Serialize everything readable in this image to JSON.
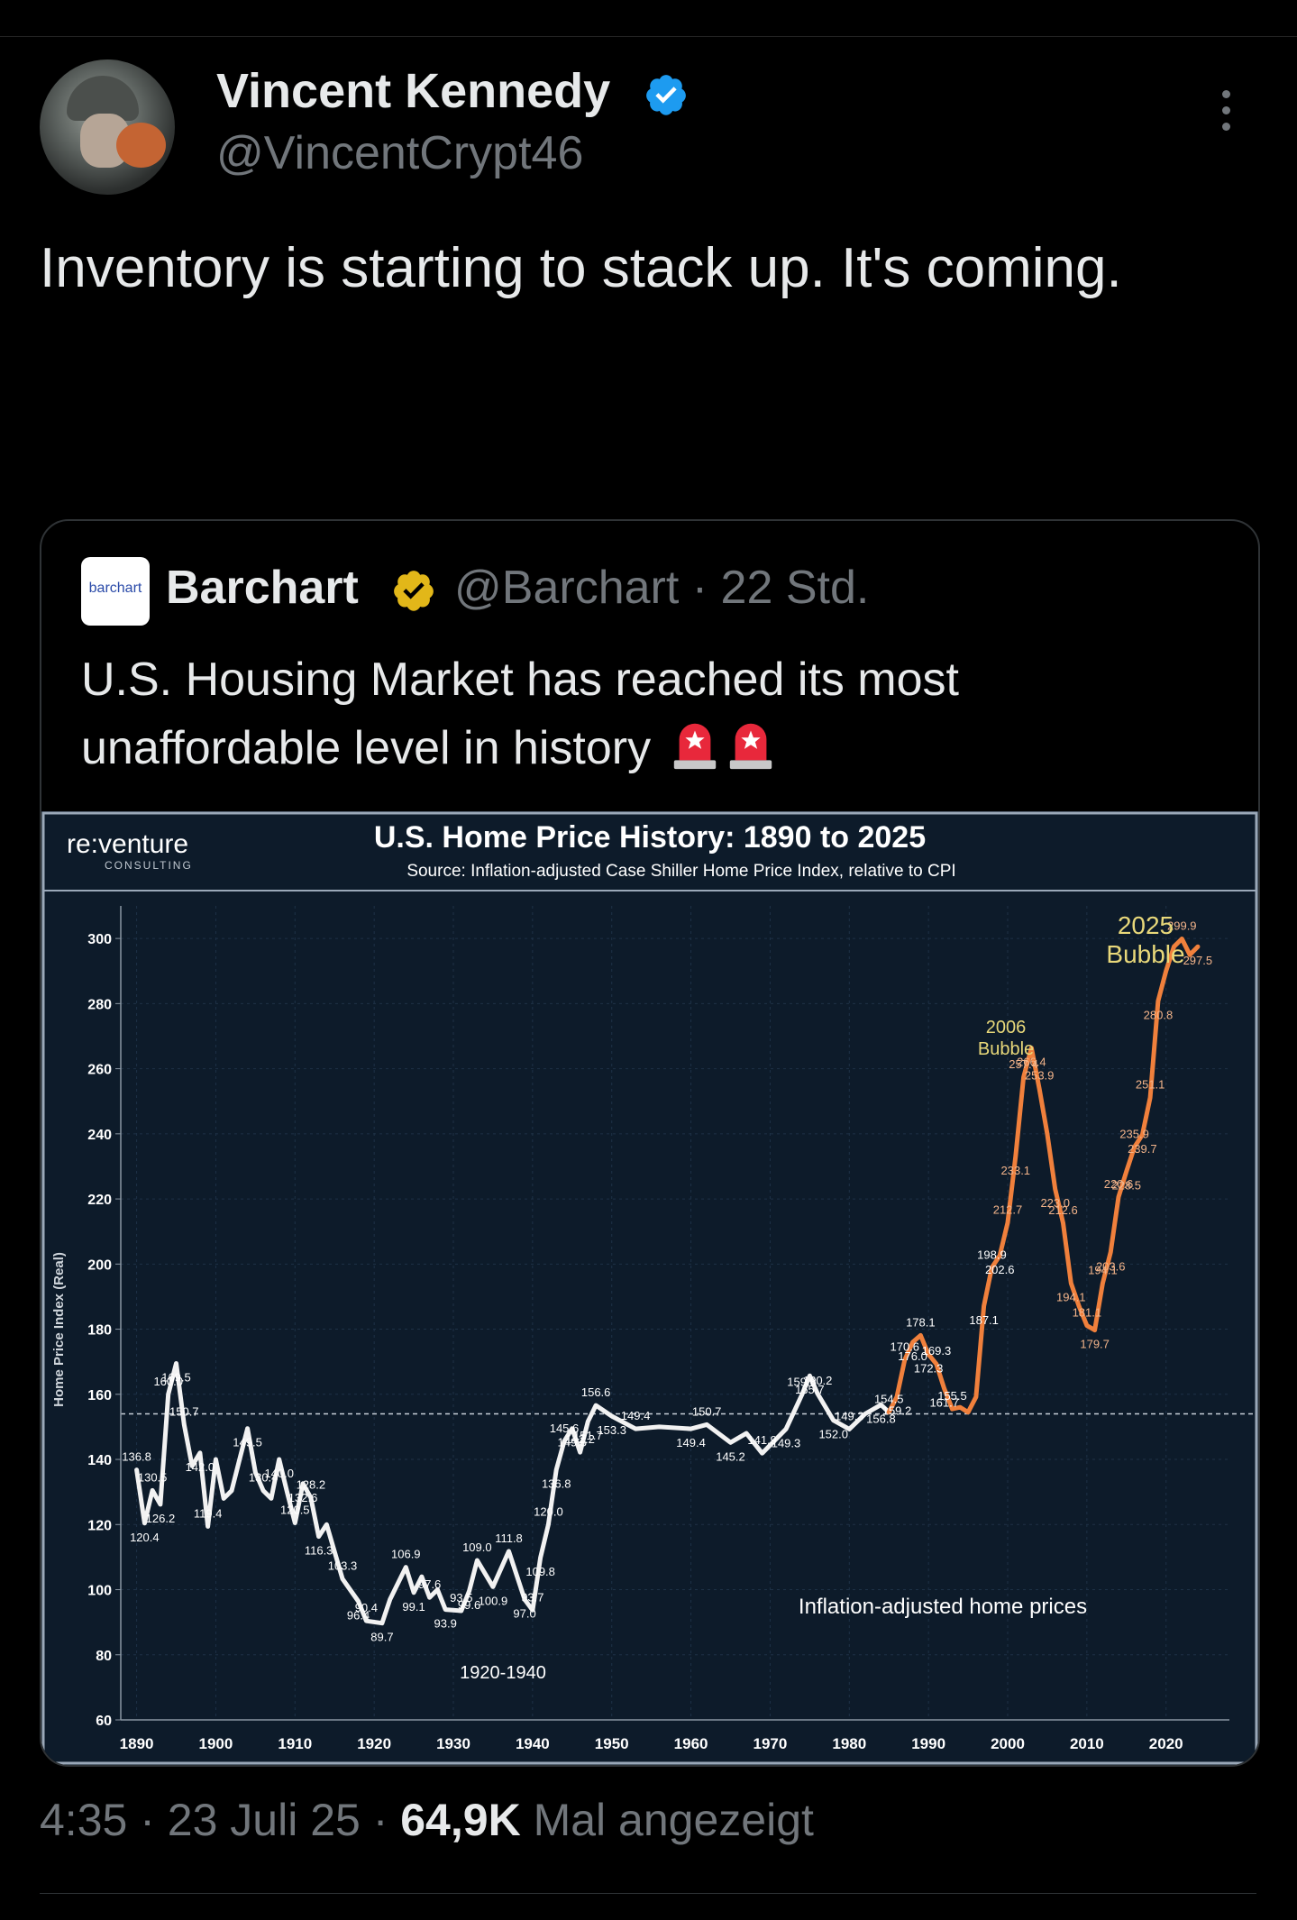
{
  "tweet": {
    "author": {
      "name": "Vincent Kennedy",
      "handle": "@VincentCrypt46",
      "verified": true,
      "avatar_icon": "avatar-photo"
    },
    "text": "Inventory is starting to stack up. It's coming.",
    "meta": {
      "time": "4:35",
      "date": "23 Juli 25",
      "views_count": "64,9K",
      "views_label": "Mal angezeigt"
    }
  },
  "quote": {
    "logo_text": "barchart",
    "name": "Barchart",
    "handle": "@Barchart",
    "time": "22 Std.",
    "text": "U.S. Housing Market has reached its most unaffordable level in history",
    "emoji_icons": [
      "rotating-light-icon",
      "rotating-light-icon"
    ]
  },
  "colors": {
    "background": "#000000",
    "text": "#e7e9ea",
    "muted": "#71767b",
    "verified_blue": "#1d9bf0",
    "verified_gold": "#e2b719",
    "chart_bg": "#0d1b2a",
    "line_white": "#f2f2f2",
    "line_orange": "#f0803c"
  },
  "chart_data": {
    "type": "line",
    "brand": "re:venture",
    "brand_sub": "CONSULTING",
    "title": "U.S. Home Price History: 1890 to 2025",
    "subtitle": "Source: Inflation-adjusted Case Shiller Home Price Index, relative to CPI",
    "ylabel": "Home Price Index (Real)",
    "xlabel": "",
    "ylim": [
      60,
      310
    ],
    "xlim": [
      1888,
      2028
    ],
    "yticks": [
      "60",
      "80",
      "100",
      "120",
      "140",
      "160",
      "180",
      "200",
      "220",
      "240",
      "260",
      "280",
      "300"
    ],
    "xticks": [
      "1890",
      "1900",
      "1910",
      "1920",
      "1930",
      "1940",
      "1950",
      "1960",
      "1970",
      "1980",
      "1990",
      "2000",
      "2010",
      "2020"
    ],
    "reference_line": 154,
    "annotations": [
      "1920-1940",
      "Inflation-adjusted home prices",
      "2006",
      "Bubble",
      "2025",
      "Bubble"
    ],
    "series": [
      {
        "color": "#f2f2f2",
        "points": [
          [
            1890,
            136.8
          ],
          [
            1891,
            120.4
          ],
          [
            1892,
            130.5
          ],
          [
            1893,
            126.2
          ],
          [
            1894,
            160.0
          ],
          [
            1895,
            169.5
          ],
          [
            1896,
            150.7
          ],
          [
            1897,
            138.0
          ],
          [
            1898,
            142.0
          ],
          [
            1899,
            119.4
          ],
          [
            1900,
            140.0
          ],
          [
            1901,
            128.0
          ],
          [
            1902,
            130.4
          ],
          [
            1903,
            140.0
          ],
          [
            1904,
            149.5
          ],
          [
            1905,
            136.0
          ],
          [
            1906,
            130.4
          ],
          [
            1907,
            128.0
          ],
          [
            1908,
            140.0
          ],
          [
            1909,
            130.0
          ],
          [
            1910,
            120.5
          ],
          [
            1911,
            132.6
          ],
          [
            1912,
            128.2
          ],
          [
            1913,
            116.3
          ],
          [
            1914,
            120.0
          ],
          [
            1916,
            103.3
          ],
          [
            1918,
            96.4
          ],
          [
            1919,
            90.4
          ],
          [
            1921,
            89.7
          ],
          [
            1922,
            97.0
          ],
          [
            1924,
            106.9
          ],
          [
            1925,
            99.1
          ],
          [
            1926,
            104.0
          ],
          [
            1927,
            97.6
          ],
          [
            1928,
            100.0
          ],
          [
            1929,
            93.9
          ],
          [
            1931,
            93.5
          ],
          [
            1932,
            99.6
          ],
          [
            1933,
            109.0
          ],
          [
            1935,
            100.9
          ],
          [
            1937,
            111.8
          ],
          [
            1939,
            97.0
          ],
          [
            1940,
            93.7
          ],
          [
            1941,
            109.8
          ],
          [
            1942,
            120.0
          ],
          [
            1943,
            136.8
          ],
          [
            1944,
            145.6
          ],
          [
            1945,
            149.5
          ],
          [
            1946,
            142.2
          ],
          [
            1947,
            151.7
          ],
          [
            1948,
            156.6
          ],
          [
            1950,
            153.3
          ],
          [
            1953,
            149.4
          ],
          [
            1956,
            150.0
          ],
          [
            1960,
            149.4
          ],
          [
            1962,
            150.7
          ],
          [
            1965,
            145.2
          ],
          [
            1967,
            148.0
          ],
          [
            1969,
            141.9
          ],
          [
            1972,
            149.3
          ],
          [
            1974,
            159.8
          ],
          [
            1975,
            165.7
          ],
          [
            1976,
            160.2
          ],
          [
            1978,
            152.0
          ],
          [
            1980,
            149.3
          ],
          [
            1982,
            154.0
          ],
          [
            1984,
            156.8
          ],
          [
            1985,
            154.5
          ]
        ]
      },
      {
        "color": "#f0803c",
        "points": [
          [
            1985,
            154.5
          ],
          [
            1986,
            159.2
          ],
          [
            1987,
            170.6
          ],
          [
            1988,
            176.0
          ],
          [
            1989,
            178.1
          ],
          [
            1990,
            172.3
          ],
          [
            1991,
            169.3
          ],
          [
            1992,
            161.7
          ],
          [
            1993,
            155.5
          ],
          [
            1994,
            156.0
          ],
          [
            1995,
            154.5
          ],
          [
            1996,
            159.2
          ],
          [
            1997,
            187.1
          ],
          [
            1998,
            198.9
          ],
          [
            1999,
            202.6
          ],
          [
            2000,
            212.7
          ],
          [
            2001,
            233.1
          ],
          [
            2002,
            257.4
          ],
          [
            2003,
            266.4
          ],
          [
            2004,
            253.9
          ],
          [
            2005,
            240.0
          ],
          [
            2006,
            223.0
          ],
          [
            2007,
            212.6
          ],
          [
            2008,
            194.1
          ],
          [
            2009,
            187.1
          ],
          [
            2010,
            181.1
          ],
          [
            2011,
            179.7
          ],
          [
            2012,
            194.1
          ],
          [
            2013,
            203.6
          ],
          [
            2014,
            220.6
          ],
          [
            2015,
            228.5
          ],
          [
            2016,
            235.9
          ],
          [
            2017,
            239.7
          ],
          [
            2018,
            251.1
          ],
          [
            2019,
            280.8
          ],
          [
            2020,
            290.0
          ],
          [
            2021,
            297.5
          ],
          [
            2022,
            299.9
          ],
          [
            2023,
            295.0
          ],
          [
            2024,
            297.5
          ]
        ]
      }
    ],
    "data_labels": [
      [
        1890,
        136.8,
        "136.8"
      ],
      [
        1891,
        120.4,
        "120.4"
      ],
      [
        1892,
        130.5,
        "130.5"
      ],
      [
        1893,
        126.2,
        "126.2"
      ],
      [
        1894,
        160.0,
        "160.0"
      ],
      [
        1895,
        169.5,
        "169.5"
      ],
      [
        1896,
        150.7,
        "150.7"
      ],
      [
        1898,
        142.0,
        "142.0"
      ],
      [
        1899,
        119.4,
        "119.4"
      ],
      [
        1904,
        149.5,
        "149.5"
      ],
      [
        1906,
        130.4,
        "130.4"
      ],
      [
        1908,
        140.0,
        "140.0"
      ],
      [
        1910,
        120.5,
        "120.5"
      ],
      [
        1911,
        132.6,
        "132.6"
      ],
      [
        1912,
        128.2,
        "128.2"
      ],
      [
        1913,
        116.3,
        "116.3"
      ],
      [
        1916,
        103.3,
        "103.3"
      ],
      [
        1918,
        96.4,
        "96.4"
      ],
      [
        1919,
        90.4,
        "90.4"
      ],
      [
        1921,
        89.7,
        "89.7"
      ],
      [
        1924,
        106.9,
        "106.9"
      ],
      [
        1925,
        99.1,
        "99.1"
      ],
      [
        1927,
        97.6,
        "97.6"
      ],
      [
        1929,
        93.9,
        "93.9"
      ],
      [
        1931,
        93.5,
        "93.5"
      ],
      [
        1932,
        99.6,
        "99.6"
      ],
      [
        1933,
        109.0,
        "109.0"
      ],
      [
        1935,
        100.9,
        "100.9"
      ],
      [
        1937,
        111.8,
        "111.8"
      ],
      [
        1939,
        97.0,
        "97.0"
      ],
      [
        1940,
        93.7,
        "93.7"
      ],
      [
        1941,
        109.8,
        "109.8"
      ],
      [
        1942,
        120.0,
        "120.0"
      ],
      [
        1943,
        136.8,
        "136.8"
      ],
      [
        1944,
        145.6,
        "145.6"
      ],
      [
        1945,
        149.5,
        "149.5"
      ],
      [
        1946,
        142.2,
        "142.2"
      ],
      [
        1947,
        151.7,
        "151.7"
      ],
      [
        1948,
        156.6,
        "156.6"
      ],
      [
        1950,
        153.3,
        "153.3"
      ],
      [
        1953,
        149.4,
        "149.4"
      ],
      [
        1960,
        149.4,
        "149.4"
      ],
      [
        1962,
        150.7,
        "150.7"
      ],
      [
        1965,
        145.2,
        "145.2"
      ],
      [
        1969,
        141.9,
        "141.9"
      ],
      [
        1972,
        149.3,
        "149.3"
      ],
      [
        1974,
        159.8,
        "159.8"
      ],
      [
        1975,
        165.7,
        "165.7"
      ],
      [
        1976,
        160.2,
        "160.2"
      ],
      [
        1978,
        152.0,
        "152.0"
      ],
      [
        1980,
        149.3,
        "149.3"
      ],
      [
        1984,
        156.8,
        "156.8"
      ],
      [
        1985,
        154.5,
        "154.5"
      ],
      [
        1986,
        159.2,
        "159.2"
      ],
      [
        1987,
        170.6,
        "170.6"
      ],
      [
        1988,
        176.0,
        "176.0"
      ],
      [
        1989,
        178.1,
        "178.1"
      ],
      [
        1990,
        172.3,
        "172.3"
      ],
      [
        1991,
        169.3,
        "169.3"
      ],
      [
        1992,
        161.7,
        "161.7"
      ],
      [
        1993,
        155.5,
        "155.5"
      ],
      [
        1997,
        187.1,
        "187.1"
      ],
      [
        1998,
        198.9,
        "198.9"
      ],
      [
        1999,
        202.6,
        "202.6"
      ],
      [
        2000,
        212.7,
        "212.7"
      ],
      [
        2001,
        233.1,
        "233.1"
      ],
      [
        2002,
        257.4,
        "257.4"
      ],
      [
        2003,
        266.4,
        "266.4"
      ],
      [
        2004,
        253.9,
        "253.9"
      ],
      [
        2006,
        223.0,
        "223.0"
      ],
      [
        2007,
        212.6,
        "212.6"
      ],
      [
        2008,
        194.1,
        "194.1"
      ],
      [
        2010,
        181.1,
        "181.1"
      ],
      [
        2011,
        179.7,
        "179.7"
      ],
      [
        2012,
        194.1,
        "194.1"
      ],
      [
        2013,
        203.6,
        "203.6"
      ],
      [
        2014,
        220.6,
        "220.6"
      ],
      [
        2015,
        228.5,
        "228.5"
      ],
      [
        2016,
        235.9,
        "235.9"
      ],
      [
        2017,
        239.7,
        "239.7"
      ],
      [
        2018,
        251.1,
        "251.1"
      ],
      [
        2019,
        280.8,
        "280.8"
      ],
      [
        2022,
        299.9,
        "299.9"
      ],
      [
        2024,
        297.5,
        "297.5"
      ]
    ]
  }
}
